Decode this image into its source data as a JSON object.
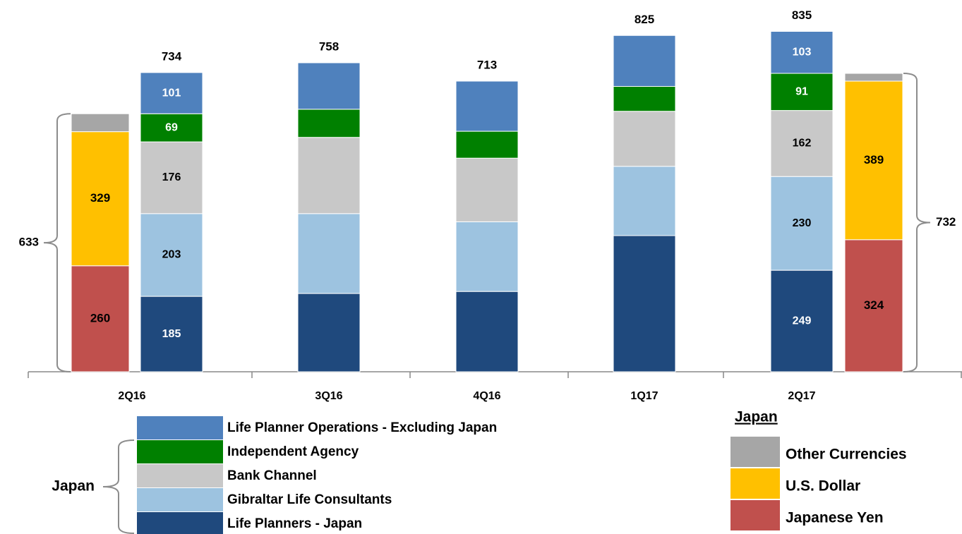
{
  "chart_data": {
    "type": "stacked_bar",
    "categories": [
      "2Q16",
      "3Q16",
      "4Q16",
      "1Q17",
      "2Q17"
    ],
    "totals": [
      734,
      758,
      713,
      825,
      835
    ],
    "labeled": [
      true,
      false,
      false,
      false,
      true
    ],
    "ylim": [
      0,
      912
    ],
    "series": [
      {
        "name": "Life Planners - Japan",
        "color": "#1f497d",
        "label_color": "#ffffff",
        "values": [
          185,
          192,
          197,
          334,
          249
        ]
      },
      {
        "name": "Gibraltar Life Consultants",
        "color": "#9dc3e0",
        "label_color": "#000000",
        "values": [
          203,
          196,
          171,
          170,
          230
        ]
      },
      {
        "name": "Bank Channel",
        "color": "#c8c8c8",
        "label_color": "#000000",
        "values": [
          176,
          187,
          156,
          135,
          162
        ]
      },
      {
        "name": "Independent Agency",
        "color": "#008000",
        "label_color": "#ffffff",
        "values": [
          69,
          69,
          66,
          61,
          91
        ]
      },
      {
        "name": "Life Planner Operations - Excluding Japan",
        "color": "#4f81bd",
        "label_color": "#ffffff",
        "values": [
          101,
          114,
          123,
          125,
          103
        ]
      }
    ],
    "legend_bracket_label": "Japan",
    "currency": {
      "title": "Japan",
      "series": [
        {
          "name": "Japanese Yen",
          "color": "#c0504d",
          "label_color": "#000000",
          "labeled": true,
          "values": [
            260,
            null,
            null,
            null,
            324
          ]
        },
        {
          "name": "U.S. Dollar",
          "color": "#ffc000",
          "label_color": "#000000",
          "labeled": true,
          "values": [
            329,
            null,
            null,
            null,
            389
          ]
        },
        {
          "name": "Other Currencies",
          "color": "#a6a6a6",
          "label_color": "#000000",
          "labeled": false,
          "values": [
            44,
            null,
            null,
            null,
            19
          ]
        }
      ],
      "totals": [
        633,
        null,
        null,
        null,
        732
      ]
    }
  }
}
